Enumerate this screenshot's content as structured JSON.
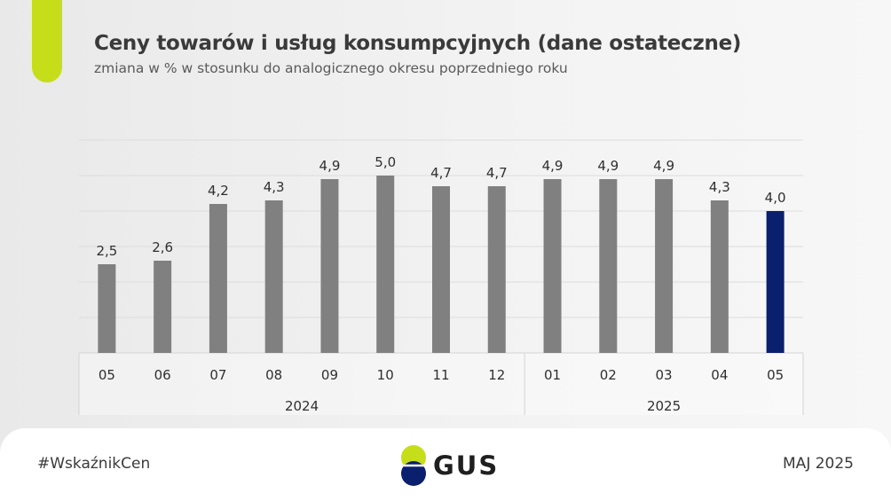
{
  "header": {
    "title": "Ceny towarów i usług konsumpcyjnych (dane ostateczne)",
    "subtitle": "zmiana w % w stosunku do analogicznego okresu poprzedniego roku"
  },
  "chart_data": {
    "type": "bar",
    "categories": [
      "05",
      "06",
      "07",
      "08",
      "09",
      "10",
      "11",
      "12",
      "01",
      "02",
      "03",
      "04",
      "05"
    ],
    "values": [
      2.5,
      2.6,
      4.2,
      4.3,
      4.9,
      5.0,
      4.7,
      4.7,
      4.9,
      4.9,
      4.9,
      4.3,
      4.0
    ],
    "value_labels": [
      "2,5",
      "2,6",
      "4,2",
      "4,3",
      "4,9",
      "5,0",
      "4,7",
      "4,7",
      "4,9",
      "4,9",
      "4,9",
      "4,3",
      "4,0"
    ],
    "groups": [
      {
        "label": "2024",
        "categories": [
          "05",
          "06",
          "07",
          "08",
          "09",
          "10",
          "11",
          "12"
        ]
      },
      {
        "label": "2025",
        "categories": [
          "01",
          "02",
          "03",
          "04",
          "05"
        ]
      }
    ],
    "ylim": [
      0,
      6
    ],
    "grid": true,
    "colors": {
      "default": "#808080",
      "highlight": "#0a1f6e"
    },
    "highlight_index": 12
  },
  "footer": {
    "hashtag": "#WskaźnikCen",
    "logo_text": "GUS",
    "date": "MAJ 2025"
  },
  "logo_colors": {
    "top": "#c6dd1a",
    "bottom": "#0a1f6e"
  }
}
